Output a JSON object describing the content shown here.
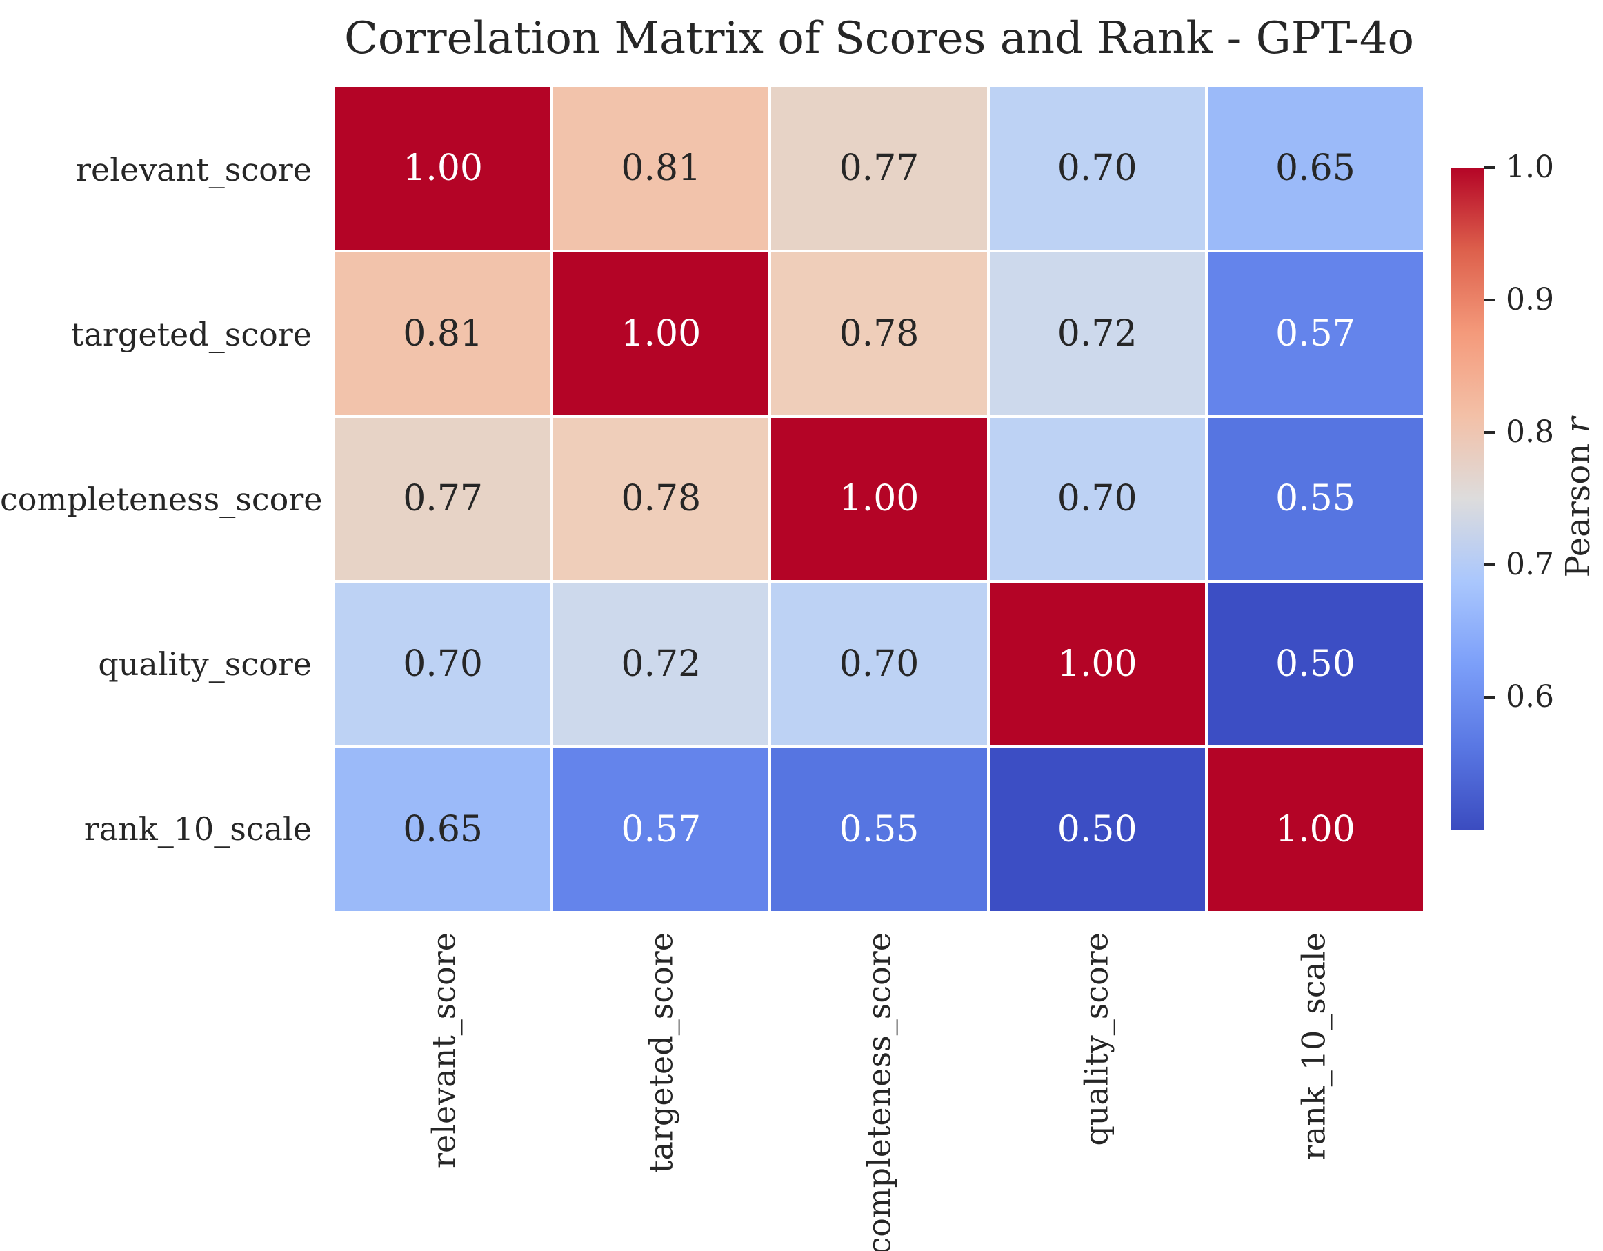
{
  "title": "Correlation Matrix of Scores and Rank - GPT-4o",
  "colors": {
    "background": "#ffffff",
    "text": "#262626",
    "grid_line": "#ffffff",
    "annotation_light": "#ffffff"
  },
  "chart_data": {
    "type": "heatmap",
    "title": "Correlation Matrix of Scores and Rank - GPT-4o",
    "x_tick_labels": [
      "relevant_score",
      "targeted_score",
      "completeness_score",
      "quality_score",
      "rank_10_scale"
    ],
    "y_tick_labels": [
      "relevant_score",
      "targeted_score",
      "completeness_score",
      "quality_score",
      "rank_10_scale"
    ],
    "matrix": [
      [
        1.0,
        0.81,
        0.77,
        0.7,
        0.65
      ],
      [
        0.81,
        1.0,
        0.78,
        0.72,
        0.57
      ],
      [
        0.77,
        0.78,
        1.0,
        0.7,
        0.55
      ],
      [
        0.7,
        0.72,
        0.7,
        1.0,
        0.5
      ],
      [
        0.65,
        0.57,
        0.55,
        0.5,
        1.0
      ]
    ],
    "annotation_format": "two_decimals",
    "colormap": "coolwarm",
    "grid_on": false,
    "colorbar": {
      "label_text": "Pearson ",
      "label_math": "r",
      "ticks": [
        1.0,
        0.9,
        0.8,
        0.7,
        0.6
      ],
      "vmin": 0.5,
      "vmax": 1.0,
      "position": "right",
      "gradient_top_to_bottom": [
        "#b40426",
        "#dd604c",
        "#f49a7b",
        "#f3c0a7",
        "#dddcdc",
        "#aac7fd",
        "#7c9ff9",
        "#5977e3",
        "#3b4cc0"
      ]
    },
    "value_styles": {
      "1.00": {
        "bg": "#b40426",
        "fg": "#ffffff"
      },
      "0.81": {
        "bg": "#f2c3ab",
        "fg": "#262626"
      },
      "0.78": {
        "bg": "#efceba",
        "fg": "#262626"
      },
      "0.77": {
        "bg": "#e7d3c6",
        "fg": "#262626"
      },
      "0.72": {
        "bg": "#cdd9ec",
        "fg": "#262626"
      },
      "0.70": {
        "bg": "#bdd2f4",
        "fg": "#262626"
      },
      "0.65": {
        "bg": "#9bbaf9",
        "fg": "#262626"
      },
      "0.57": {
        "bg": "#6484eb",
        "fg": "#ffffff"
      },
      "0.55": {
        "bg": "#5675e1",
        "fg": "#ffffff"
      },
      "0.50": {
        "bg": "#3c4ec4",
        "fg": "#ffffff"
      }
    }
  }
}
